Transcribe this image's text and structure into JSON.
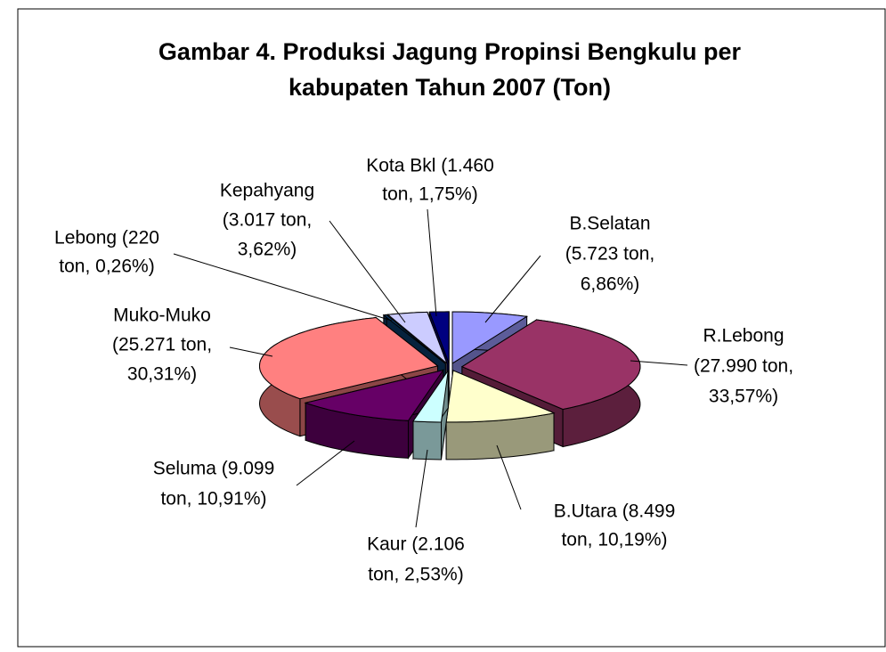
{
  "chart_data": {
    "type": "pie",
    "title": [
      "Gambar 4. Produksi Jagung Propinsi Bengkulu per",
      "kabupaten Tahun 2007 (Ton)"
    ],
    "values": [
      1460,
      5723,
      27990,
      8499,
      2106,
      9099,
      25271,
      220,
      3017
    ],
    "value_labels": [
      [
        "Kota Bkl (1.460",
        "ton, 1,75%)"
      ],
      [
        "B.Selatan",
        "(5.723 ton,",
        "6,86%)"
      ],
      [
        "R.Lebong",
        "(27.990 ton,",
        "33,57%)"
      ],
      [
        "B.Utara (8.499",
        "ton, 10,19%)"
      ],
      [
        "Kaur (2.106",
        "ton, 2,53%)"
      ],
      [
        "Seluma (9.099",
        "ton, 10,91%)"
      ],
      [
        "Muko-Muko",
        "(25.271 ton,",
        "30,31%)"
      ],
      [
        "Lebong (220",
        "ton, 0,26%)"
      ],
      [
        "Kepahyang",
        "(3.017 ton,",
        "3,62%)"
      ]
    ],
    "colors": [
      "#000080",
      "#9999ff",
      "#993366",
      "#ffffcc",
      "#ccffff",
      "#660066",
      "#ff8080",
      "#0a3e6e",
      "#ccccff"
    ]
  }
}
